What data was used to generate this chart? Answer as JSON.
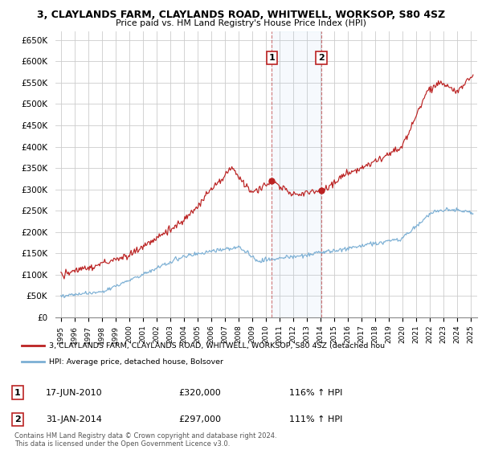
{
  "title": "3, CLAYLANDS FARM, CLAYLANDS ROAD, WHITWELL, WORKSOP, S80 4SZ",
  "subtitle": "Price paid vs. HM Land Registry's House Price Index (HPI)",
  "ylim": [
    0,
    670000
  ],
  "yticks": [
    0,
    50000,
    100000,
    150000,
    200000,
    250000,
    300000,
    350000,
    400000,
    450000,
    500000,
    550000,
    600000,
    650000
  ],
  "sale1_date": 2010.46,
  "sale1_price": 320000,
  "sale1_label": "1",
  "sale2_date": 2014.08,
  "sale2_price": 297000,
  "sale2_label": "2",
  "hpi_color": "#7bafd4",
  "price_color": "#bb2222",
  "annotation_box_color": "#bb2222",
  "background_color": "#ffffff",
  "grid_color": "#cccccc",
  "legend_label_price": "3, CLAYLANDS FARM, CLAYLANDS ROAD, WHITWELL, WORKSOP, S80 4SZ (detached hou",
  "legend_label_hpi": "HPI: Average price, detached house, Bolsover",
  "footnote": "Contains HM Land Registry data © Crown copyright and database right 2024.\nThis data is licensed under the Open Government Licence v3.0."
}
